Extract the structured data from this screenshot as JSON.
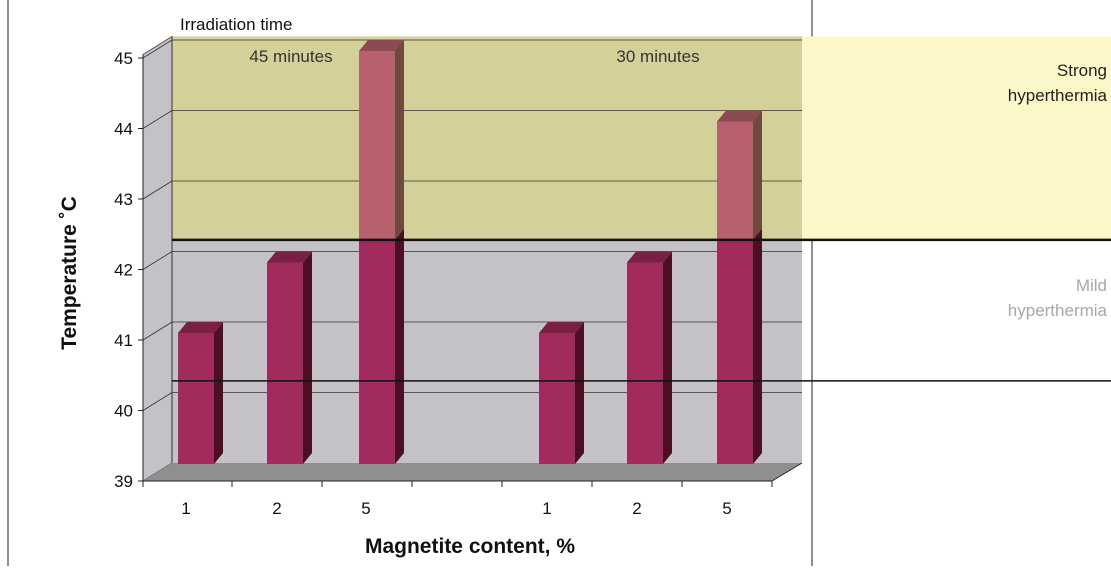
{
  "chart_data": {
    "type": "bar",
    "title": "",
    "xlabel": "Magnetite content, %",
    "ylabel": "Temperature ˚C",
    "ylim": [
      39,
      45
    ],
    "yticks": [
      "39",
      "40",
      "41",
      "42",
      "43",
      "44",
      "45"
    ],
    "grid": true,
    "three_d": true,
    "group_header": "Irradiation time",
    "groups": [
      {
        "label": "45 minutes",
        "categories": [
          "1",
          "2",
          "5"
        ],
        "values": [
          41,
          42,
          45
        ]
      },
      {
        "label": "30 minutes",
        "categories": [
          "1",
          "2",
          "5"
        ],
        "values": [
          41,
          42,
          44
        ]
      }
    ],
    "zones": [
      {
        "label_line1": "Strong",
        "label_line2": "hyperthermia",
        "from": 42.25,
        "to": 45,
        "color": "#fbf7c8"
      },
      {
        "label_line1": "Mild",
        "label_line2": "hyperthermia",
        "from": 40.25,
        "to": 42.25,
        "color": "#c5c2c7"
      }
    ],
    "reference_lines": [
      42.25,
      40.25
    ],
    "colors": {
      "bar_front": "#a02b5c",
      "bar_top": "#7a2043",
      "bar_side": "#4c1024",
      "bar_front_upper": "#b8616e",
      "bar_top_upper": "#8d4a52",
      "bar_side_upper": "#6e4a3e",
      "wall": "#c5c2c7",
      "floor": "#8f8f8f",
      "strong_zone_fill": "#fbf7c8",
      "strong_zone_overlay": "#9d9b57",
      "mild_label": "#a7a7a7"
    }
  }
}
